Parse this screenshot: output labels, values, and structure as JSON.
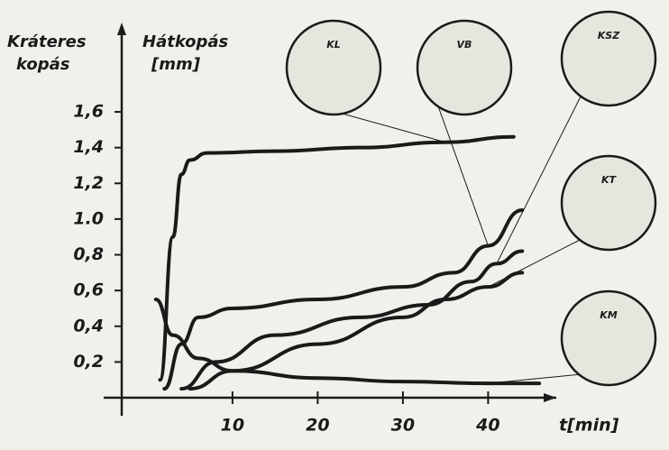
{
  "chart_data": {
    "type": "line",
    "y_label_left": [
      "Kráteres",
      "kopás"
    ],
    "y_label_right": [
      "Hátkopás",
      "[mm]"
    ],
    "x_label": "t[min]",
    "xlim": [
      -3,
      48
    ],
    "ylim": [
      0,
      2.1
    ],
    "xticks": [
      10,
      20,
      30,
      40
    ],
    "yticks": [
      {
        "value": 0.2,
        "label": "0,2"
      },
      {
        "value": 0.4,
        "label": "0,4"
      },
      {
        "value": 0.6,
        "label": "0,6"
      },
      {
        "value": 0.8,
        "label": "0,8"
      },
      {
        "value": 1.0,
        "label": "1.0"
      },
      {
        "value": 1.2,
        "label": "1,2"
      },
      {
        "value": 1.4,
        "label": "1,4"
      },
      {
        "value": 1.6,
        "label": "1,6"
      }
    ],
    "color": "#1a1a1a",
    "series": [
      {
        "name": "KL",
        "x": [
          1.5,
          3,
          4,
          5,
          7,
          15,
          25,
          35,
          43
        ],
        "values": [
          0.1,
          0.9,
          1.25,
          1.33,
          1.37,
          1.38,
          1.4,
          1.43,
          1.46
        ]
      },
      {
        "name": "VB",
        "x": [
          2,
          4,
          6,
          10,
          20,
          30,
          36,
          40,
          44
        ],
        "values": [
          0.05,
          0.3,
          0.45,
          0.5,
          0.55,
          0.62,
          0.7,
          0.85,
          1.05
        ]
      },
      {
        "name": "KSZ",
        "x": [
          4,
          8,
          15,
          25,
          33,
          38,
          41,
          44
        ],
        "values": [
          0.05,
          0.2,
          0.35,
          0.45,
          0.52,
          0.65,
          0.75,
          0.82
        ]
      },
      {
        "name": "KT",
        "x": [
          5,
          10,
          20,
          30,
          35,
          40,
          44
        ],
        "values": [
          0.05,
          0.15,
          0.3,
          0.45,
          0.55,
          0.62,
          0.7
        ]
      },
      {
        "name": "KM",
        "x": [
          1,
          3,
          6,
          10,
          20,
          30,
          40,
          46
        ],
        "values": [
          0.55,
          0.35,
          0.22,
          0.15,
          0.11,
          0.09,
          0.08,
          0.08
        ]
      }
    ]
  }
}
